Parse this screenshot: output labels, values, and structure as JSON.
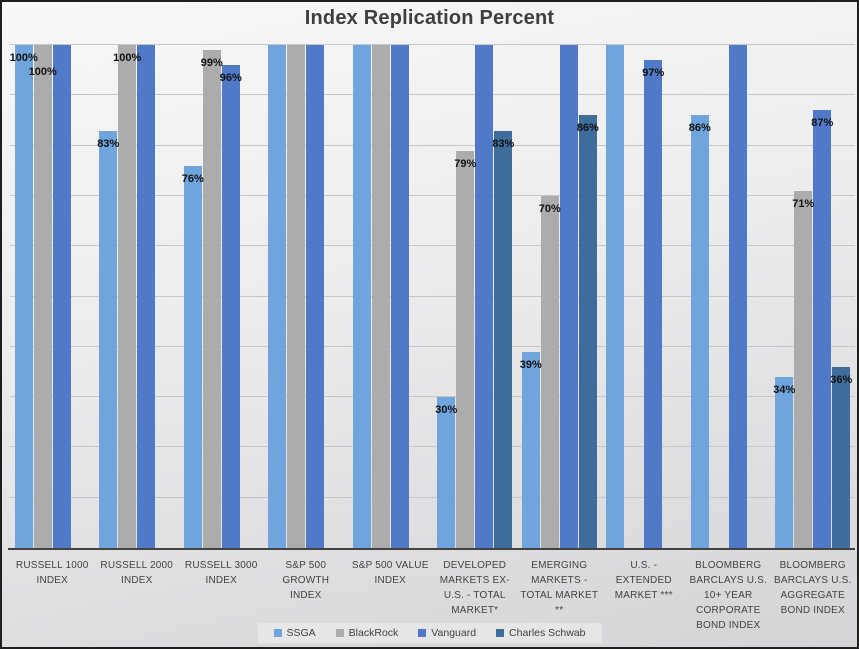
{
  "chart_data": {
    "type": "bar",
    "title": "Index Replication Percent",
    "xlabel": "",
    "ylabel": "",
    "ylim": [
      0,
      100
    ],
    "gridline_step": 10,
    "grid": true,
    "y_axis_labels_visible": false,
    "legend_position": "bottom-center",
    "value_label_format": "percent",
    "categories": [
      "RUSSELL 1000 INDEX",
      "RUSSELL 2000 INDEX",
      "RUSSELL 3000 INDEX",
      "S&P 500 GROWTH INDEX",
      "S&P 500 VALUE INDEX",
      "DEVELOPED MARKETS EX-U.S. - TOTAL MARKET*",
      "EMERGING MARKETS - TOTAL MARKET **",
      "U.S. - EXTENDED MARKET ***",
      "BLOOMBERG BARCLAYS U.S. 10+ YEAR CORPORATE BOND INDEX",
      "BLOOMBERG BARCLAYS U.S. AGGREGATE BOND INDEX"
    ],
    "series": [
      {
        "name": "SSGA",
        "color": "#6fa5dc",
        "values": [
          100,
          83,
          76,
          100,
          100,
          30,
          39,
          100,
          86,
          34
        ],
        "labels": [
          "100%",
          "83%",
          "76%",
          null,
          null,
          "30%",
          "39%",
          null,
          "86%",
          "34%"
        ],
        "label_dy": [
          0,
          0,
          0,
          0,
          0,
          0,
          0,
          0,
          0,
          0
        ]
      },
      {
        "name": "BlackRock",
        "color": "#acacac",
        "values": [
          100,
          100,
          99,
          100,
          100,
          79,
          70,
          null,
          null,
          71
        ],
        "labels": [
          "100%",
          "100%",
          "99%",
          null,
          null,
          "79%",
          "70%",
          null,
          null,
          "71%"
        ],
        "label_dy": [
          14,
          0,
          0,
          0,
          0,
          0,
          0,
          0,
          0,
          0
        ]
      },
      {
        "name": "Vanguard",
        "color": "#5079c7",
        "values": [
          100,
          100,
          96,
          100,
          100,
          100,
          100,
          97,
          100,
          87
        ],
        "labels": [
          null,
          null,
          "96%",
          null,
          null,
          null,
          null,
          "97%",
          null,
          "87%"
        ],
        "label_dy": [
          0,
          0,
          0,
          0,
          0,
          0,
          0,
          0,
          0,
          0
        ]
      },
      {
        "name": "Charles Schwab",
        "color": "#3e6d9c",
        "values": [
          null,
          null,
          null,
          null,
          null,
          83,
          86,
          null,
          null,
          36
        ],
        "labels": [
          null,
          null,
          null,
          null,
          null,
          "83%",
          "86%",
          null,
          null,
          "36%"
        ],
        "label_dy": [
          0,
          0,
          0,
          0,
          0,
          0,
          0,
          0,
          0,
          0
        ]
      }
    ]
  },
  "style": {
    "border_color": "#1f1f1f",
    "title_color": "#3f3f3f",
    "gridline_color": "#c7c7ca",
    "axis_line_color": "#434343",
    "category_label_color": "#424242",
    "data_label_color": "#111111"
  }
}
